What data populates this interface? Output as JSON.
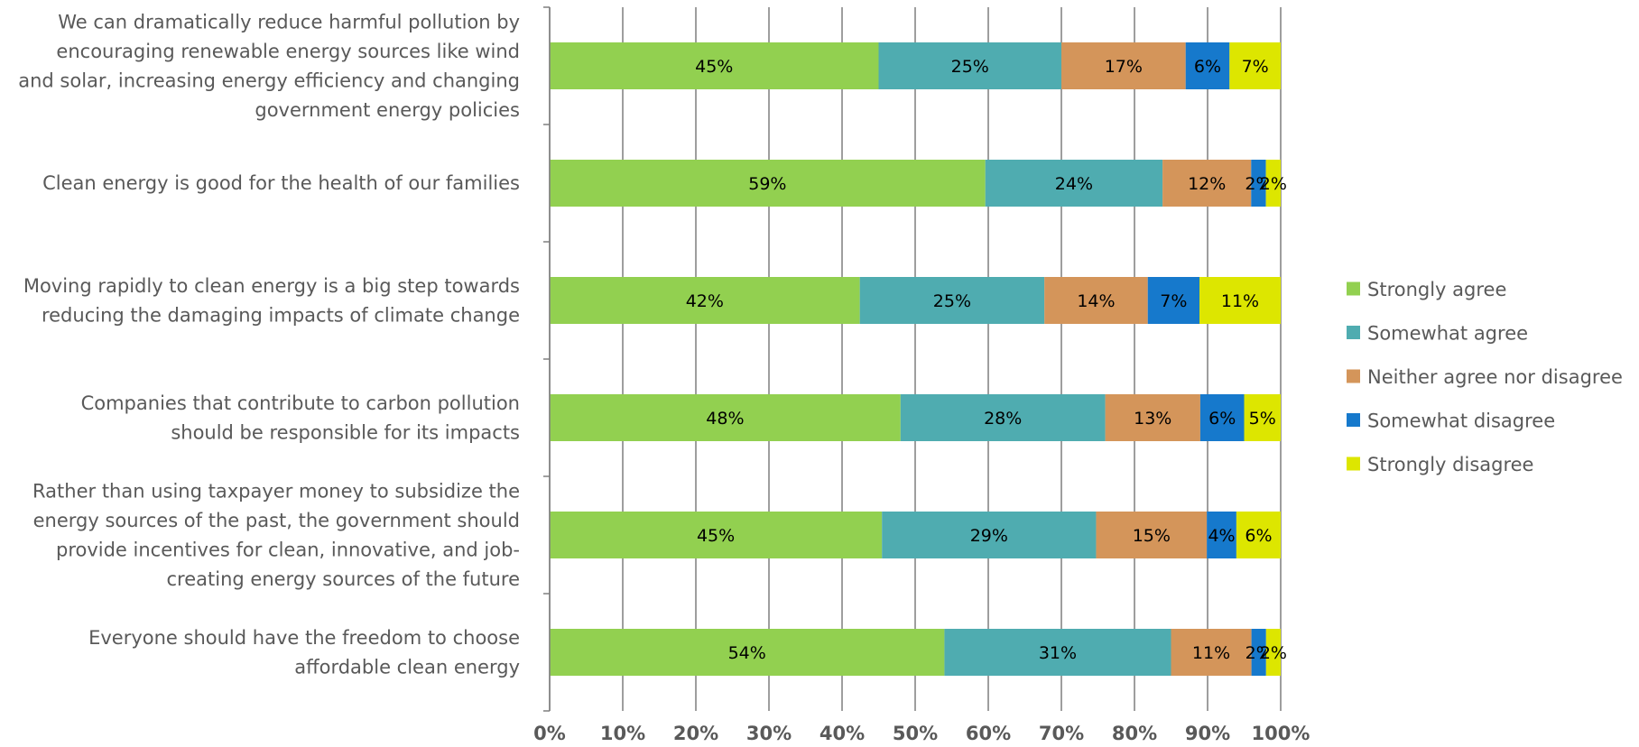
{
  "chart_data": {
    "type": "bar",
    "orientation": "horizontal",
    "stacked": "percent",
    "categories": [
      [
        "We can dramatically reduce harmful pollution by",
        "encouraging renewable energy sources like wind",
        "and solar, increasing energy efficiency and changing",
        "government energy policies"
      ],
      [
        "Clean energy is good for the health of our families"
      ],
      [
        "Moving rapidly to clean energy is a big step towards",
        "reducing the damaging impacts of climate change"
      ],
      [
        "Companies that contribute to carbon pollution",
        "should be responsible for its impacts"
      ],
      [
        "Rather than using taxpayer money to subsidize the",
        "energy sources of the past, the government should",
        "provide incentives for clean, innovative, and job-",
        "creating energy sources of the future"
      ],
      [
        "Everyone should have the freedom to choose",
        "affordable clean energy"
      ]
    ],
    "series": [
      {
        "name": "Strongly agree",
        "color": "#92D050",
        "values": [
          45,
          59,
          42,
          48,
          45,
          54
        ],
        "labels": [
          "45%",
          "59%",
          "42%",
          "48%",
          "45%",
          "54%"
        ]
      },
      {
        "name": "Somewhat agree",
        "color": "#4FACB0",
        "values": [
          25,
          24,
          25,
          28,
          29,
          31
        ],
        "labels": [
          "25%",
          "24%",
          "25%",
          "28%",
          "29%",
          "31%"
        ]
      },
      {
        "name": "Neither agree nor disagree",
        "color": "#D4955A",
        "values": [
          17,
          12,
          14,
          13,
          15,
          11
        ],
        "labels": [
          "17%",
          "12%",
          "14%",
          "13%",
          "15%",
          "11%"
        ]
      },
      {
        "name": "Somewhat disagree",
        "color": "#1679CC",
        "values": [
          6,
          2,
          7,
          6,
          4,
          2
        ],
        "labels": [
          "6%",
          "2%",
          "7%",
          "6%",
          "4%",
          "2%"
        ]
      },
      {
        "name": "Strongly disagree",
        "color": "#DDE600",
        "values": [
          7,
          2,
          11,
          5,
          6,
          2
        ],
        "labels": [
          "7%",
          "2%",
          "11%",
          "5%",
          "6%",
          "2%"
        ]
      }
    ],
    "xticks": [
      "0%",
      "10%",
      "20%",
      "30%",
      "40%",
      "50%",
      "60%",
      "70%",
      "80%",
      "90%",
      "100%"
    ],
    "xlim": [
      0,
      100
    ],
    "grid": true,
    "legend_position": "right"
  }
}
